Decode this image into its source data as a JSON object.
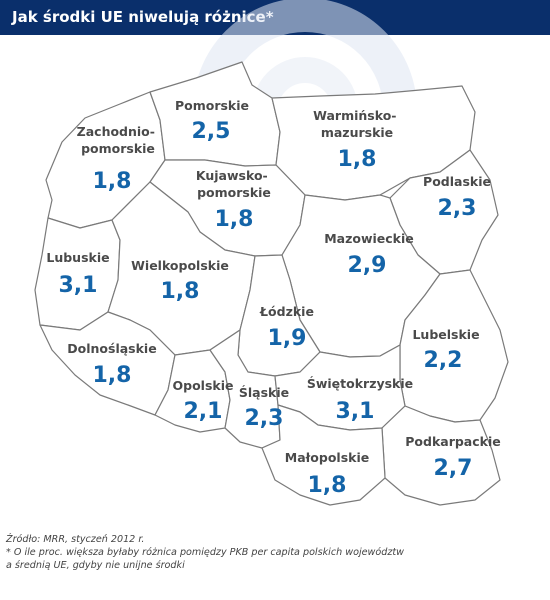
{
  "header": {
    "title": "Jak środki UE niwelują różnice*"
  },
  "map": {
    "regions": [
      {
        "id": "zachodniopomorskie",
        "label_lines": [
          "Zachodnio-",
          "pomorskie"
        ],
        "value": "1,8"
      },
      {
        "id": "pomorskie",
        "label_lines": [
          "Pomorskie"
        ],
        "value": "2,5"
      },
      {
        "id": "warminsko-mazurskie",
        "label_lines": [
          "Warmińsko-",
          "mazurskie"
        ],
        "value": "1,8"
      },
      {
        "id": "kujawsko-pomorskie",
        "label_lines": [
          "Kujawsko-",
          "pomorskie"
        ],
        "value": "1,8"
      },
      {
        "id": "podlaskie",
        "label_lines": [
          "Podlaskie"
        ],
        "value": "2,3"
      },
      {
        "id": "lubuskie",
        "label_lines": [
          "Lubuskie"
        ],
        "value": "3,1"
      },
      {
        "id": "wielkopolskie",
        "label_lines": [
          "Wielkopolskie"
        ],
        "value": "1,8"
      },
      {
        "id": "mazowieckie",
        "label_lines": [
          "Mazowieckie"
        ],
        "value": "2,9"
      },
      {
        "id": "lodzkie",
        "label_lines": [
          "Łódzkie"
        ],
        "value": "1,9"
      },
      {
        "id": "lubelskie",
        "label_lines": [
          "Lubelskie"
        ],
        "value": "2,2"
      },
      {
        "id": "dolnoslaskie",
        "label_lines": [
          "Dolnośląskie"
        ],
        "value": "1,8"
      },
      {
        "id": "opolskie",
        "label_lines": [
          "Opolskie"
        ],
        "value": "2,1"
      },
      {
        "id": "slaskie",
        "label_lines": [
          "Śląskie"
        ],
        "value": "2,3"
      },
      {
        "id": "swietokrzyskie",
        "label_lines": [
          "Świętokrzyskie"
        ],
        "value": "3,1"
      },
      {
        "id": "podkarpackie",
        "label_lines": [
          "Podkarpackie"
        ],
        "value": "2,7"
      },
      {
        "id": "malopolskie",
        "label_lines": [
          "Małopolskie"
        ],
        "value": "1,8"
      }
    ]
  },
  "footer": {
    "source": "Źródło: MRR, styczeń 2012 r.",
    "note_line1": "* O ile proc. większa byłaby różnica pomiędzy PKB per capita polskich województw",
    "note_line2": "a średnią UE, gdyby nie unijne środki"
  },
  "colors": {
    "header_bg": "#0a2f6b",
    "value_text": "#1464a8",
    "label_text": "#4a4a4a",
    "border": "#7a7a7a"
  }
}
